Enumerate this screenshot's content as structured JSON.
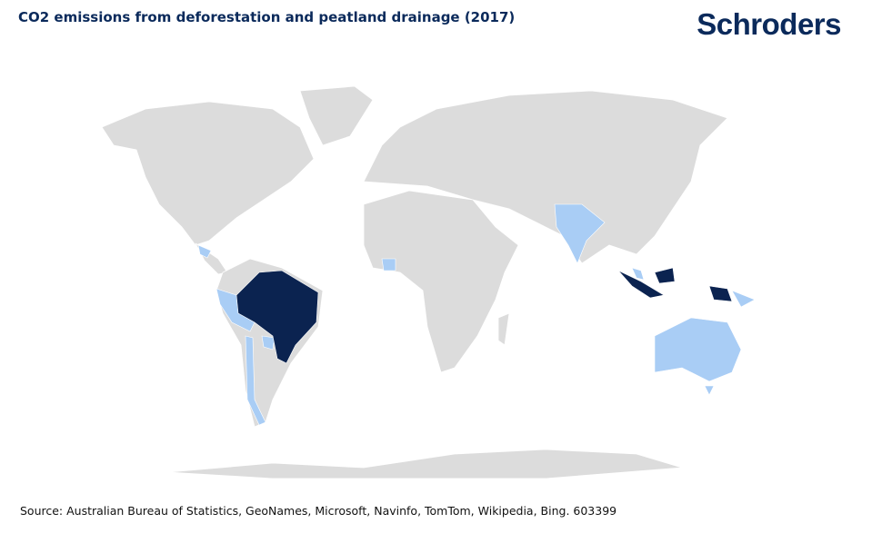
{
  "header": {
    "title": "CO2 emissions from deforestation and peatland drainage (2017)",
    "brand": "Schroders"
  },
  "footer": {
    "source": "Source: Australian Bureau of Statistics, GeoNames, Microsoft, Navinfo, TomTom, Wikipedia, Bing. 603399"
  }
}
